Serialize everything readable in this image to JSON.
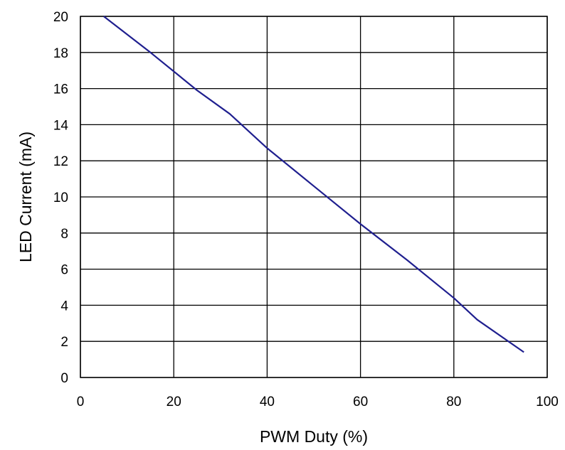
{
  "chart_data": {
    "type": "line",
    "title": "",
    "xlabel": "PWM Duty (%)",
    "ylabel": "LED Current (mA)",
    "xlim": [
      0,
      100
    ],
    "ylim": [
      0,
      20
    ],
    "x_ticks": [
      0,
      20,
      40,
      60,
      80,
      100
    ],
    "y_ticks": [
      0,
      2,
      4,
      6,
      8,
      10,
      12,
      14,
      16,
      18,
      20
    ],
    "grid": true,
    "legend": "none",
    "series": [
      {
        "color": "#1f1f8f",
        "x": [
          5,
          15,
          25,
          32,
          40,
          50,
          60,
          70,
          80,
          85,
          95
        ],
        "y": [
          20,
          18.0,
          15.9,
          14.6,
          12.7,
          10.6,
          8.5,
          6.5,
          4.4,
          3.2,
          1.4
        ]
      }
    ]
  }
}
